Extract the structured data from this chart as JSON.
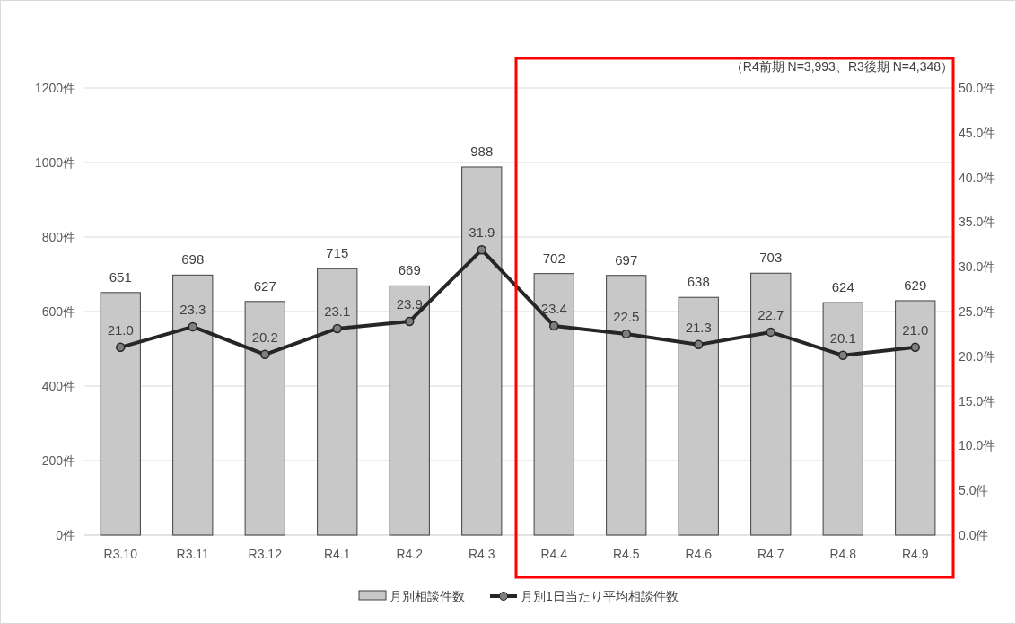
{
  "chart_data": {
    "type": "bar",
    "categories": [
      "R3.10",
      "R3.11",
      "R3.12",
      "R4.1",
      "R4.2",
      "R4.3",
      "R4.4",
      "R4.5",
      "R4.6",
      "R4.7",
      "R4.8",
      "R4.9"
    ],
    "series": [
      {
        "name": "月別相談件数",
        "color": "#c8c8c8",
        "values": [
          651,
          698,
          627,
          715,
          669,
          988,
          702,
          697,
          638,
          703,
          624,
          629
        ],
        "data_labels": true
      },
      {
        "name": "月別1日当たり平均相談件数",
        "type": "line",
        "axis": "y2",
        "color": "#262626",
        "marker": "circle",
        "values": [
          21.0,
          23.3,
          20.2,
          23.1,
          23.9,
          31.9,
          23.4,
          22.5,
          21.3,
          22.7,
          20.1,
          21.0
        ],
        "value_labels": [
          "21.0",
          "23.3",
          "20.2",
          "23.1",
          "23.9",
          "31.9",
          "23.4",
          "22.5",
          "21.3",
          "22.7",
          "20.1",
          "21.0"
        ]
      }
    ],
    "ylim": [
      0,
      1200
    ],
    "yticks": [
      {
        "value": 0,
        "label": "0件"
      },
      {
        "value": 200,
        "label": "200件"
      },
      {
        "value": 400,
        "label": "400件"
      },
      {
        "value": 600,
        "label": "600件"
      },
      {
        "value": 800,
        "label": "800件"
      },
      {
        "value": 1000,
        "label": "1000件"
      },
      {
        "value": 1200,
        "label": "1200件"
      }
    ],
    "y2lim": [
      0,
      50
    ],
    "y2ticks": [
      {
        "value": 0,
        "label": "0.0件"
      },
      {
        "value": 5,
        "label": "5.0件"
      },
      {
        "value": 10,
        "label": "10.0件"
      },
      {
        "value": 15,
        "label": "15.0件"
      },
      {
        "value": 20,
        "label": "20.0件"
      },
      {
        "value": 25,
        "label": "25.0件"
      },
      {
        "value": 30,
        "label": "30.0件"
      },
      {
        "value": 35,
        "label": "35.0件"
      },
      {
        "value": 40,
        "label": "40.0件"
      },
      {
        "value": 45,
        "label": "45.0件"
      },
      {
        "value": 50,
        "label": "50.0件"
      }
    ],
    "annotations": [
      "（R4前期 N=3,993、R3後期 N=4,348）"
    ],
    "grid": "y",
    "legend": "bottom"
  }
}
